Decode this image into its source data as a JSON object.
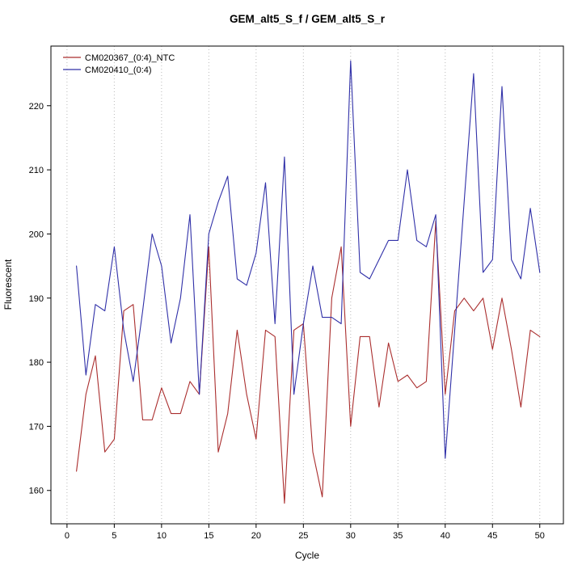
{
  "chart_data": {
    "type": "line",
    "title": "GEM_alt5_S_f / GEM_alt5_S_r",
    "xlabel": "Cycle",
    "ylabel": "Fluorescent",
    "xlim": [
      -1.7,
      52.5
    ],
    "ylim": [
      154.8,
      229.3
    ],
    "x_ticks": [
      0,
      5,
      10,
      15,
      20,
      25,
      30,
      35,
      40,
      45,
      50
    ],
    "y_ticks": [
      160,
      170,
      180,
      190,
      200,
      210,
      220
    ],
    "grid": "vertical-dotted",
    "grid_color": "#b9b9b9",
    "legend_position": "top-left",
    "x": [
      1,
      2,
      3,
      4,
      5,
      6,
      7,
      8,
      9,
      10,
      11,
      12,
      13,
      14,
      15,
      16,
      17,
      18,
      19,
      20,
      21,
      22,
      23,
      24,
      25,
      26,
      27,
      28,
      29,
      30,
      31,
      32,
      33,
      34,
      35,
      36,
      37,
      38,
      39,
      40,
      41,
      42,
      43,
      44,
      45,
      46,
      47,
      48,
      49,
      50
    ],
    "series": [
      {
        "name": "CM020367_(0:4)_NTC",
        "color": "#aa2e2e",
        "values": [
          163,
          175,
          181,
          166,
          168,
          188,
          189,
          171,
          171,
          176,
          172,
          172,
          177,
          175,
          198,
          166,
          172,
          185,
          175,
          168,
          185,
          184,
          158,
          185,
          186,
          166,
          159,
          190,
          198,
          170,
          184,
          184,
          173,
          183,
          177,
          178,
          176,
          177,
          202,
          175,
          188,
          190,
          188,
          190,
          182,
          190,
          182,
          173,
          185,
          184
        ]
      },
      {
        "name": "CM020410_(0:4)",
        "color": "#3030a8",
        "values": [
          195,
          178,
          189,
          188,
          198,
          185,
          177,
          188,
          200,
          195,
          183,
          190,
          203,
          175,
          200,
          205,
          209,
          193,
          192,
          197,
          208,
          186,
          212,
          175,
          186,
          195,
          187,
          187,
          186,
          227,
          194,
          193,
          196,
          199,
          199,
          210,
          199,
          198,
          203,
          165,
          185,
          205,
          225,
          194,
          196,
          223,
          196,
          193,
          204,
          194
        ]
      }
    ]
  }
}
